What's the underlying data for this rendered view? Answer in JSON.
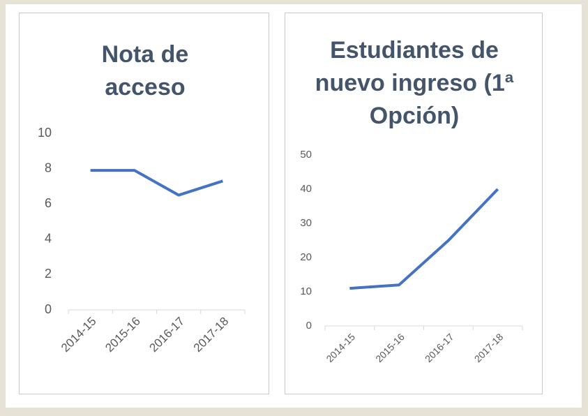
{
  "chart_data": [
    {
      "type": "line",
      "title": "Nota de acceso",
      "categories": [
        "2014-15",
        "2015-16",
        "2016-17",
        "2017-18"
      ],
      "values": [
        7.9,
        7.9,
        6.5,
        7.3
      ],
      "color": "#4472c4",
      "ylim": [
        0,
        10
      ],
      "yticks": [
        0,
        2,
        4,
        6,
        8,
        10
      ],
      "grid": false
    },
    {
      "type": "line",
      "title": "Estudiantes de nuevo ingreso (1ª Opción)",
      "categories": [
        "2014-15",
        "2015-16",
        "2016-17",
        "2017-18"
      ],
      "values": [
        11,
        12,
        25,
        40
      ],
      "color": "#4472c4",
      "ylim": [
        0,
        50
      ],
      "yticks": [
        0,
        10,
        20,
        30,
        40,
        50
      ],
      "grid": false
    }
  ]
}
